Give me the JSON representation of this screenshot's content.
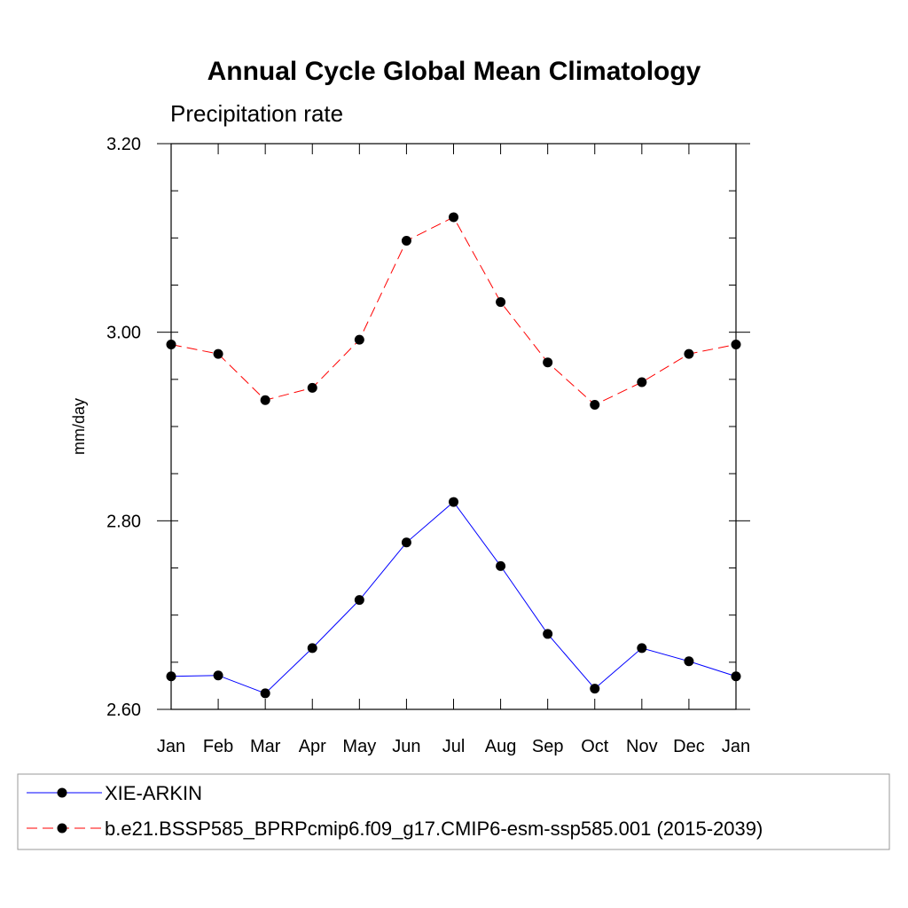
{
  "chart_data": {
    "type": "line",
    "title": "Annual Cycle Global Mean Climatology",
    "subtitle": "Precipitation rate",
    "xlabel": "",
    "ylabel": "mm/day",
    "categories": [
      "Jan",
      "Feb",
      "Mar",
      "Apr",
      "May",
      "Jun",
      "Jul",
      "Aug",
      "Sep",
      "Oct",
      "Nov",
      "Dec",
      "Jan"
    ],
    "ylim": [
      2.6,
      3.2
    ],
    "yticks": [
      "2.60",
      "2.80",
      "3.00",
      "3.20"
    ],
    "yticks_values": [
      2.6,
      2.8,
      3.0,
      3.2
    ],
    "grid": false,
    "legend_position": "bottom",
    "series": [
      {
        "name": "XIE-ARKIN",
        "color": "#0000ff",
        "line_style": "solid",
        "marker": "filled-circle",
        "values": [
          2.635,
          2.636,
          2.617,
          2.665,
          2.716,
          2.777,
          2.82,
          2.752,
          2.68,
          2.622,
          2.665,
          2.651,
          2.635
        ]
      },
      {
        "name": "b.e21.BSSP585_BPRPcmip6.f09_g17.CMIP6-esm-ssp585.001 (2015-2039)",
        "color": "#ff0000",
        "line_style": "dashed",
        "marker": "filled-circle",
        "values": [
          2.987,
          2.977,
          2.928,
          2.941,
          2.992,
          3.097,
          3.122,
          3.032,
          2.968,
          2.923,
          2.947,
          2.977,
          2.987
        ]
      }
    ]
  }
}
